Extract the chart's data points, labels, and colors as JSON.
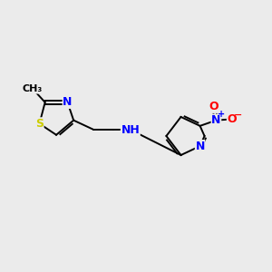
{
  "background_color": "#ebebeb",
  "bond_color": "#000000",
  "atom_colors": {
    "N": "#0000ff",
    "S": "#cccc00",
    "O": "#ff0000",
    "C": "#000000"
  },
  "font_size_atom": 9,
  "fig_width": 3.0,
  "fig_height": 3.0,
  "dpi": 100,
  "xlim": [
    0,
    12
  ],
  "ylim": [
    0,
    10
  ]
}
